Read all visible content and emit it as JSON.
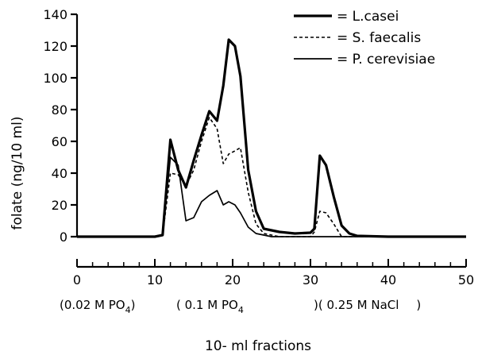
{
  "chart_data": {
    "type": "line",
    "xlabel": "10- ml fractions",
    "ylabel": "folate (ng/10 ml)",
    "xlim": [
      0,
      50
    ],
    "ylim": [
      0,
      140
    ],
    "x_ticks": [
      0,
      10,
      20,
      30,
      40,
      50
    ],
    "y_ticks": [
      0,
      20,
      40,
      60,
      80,
      100,
      120,
      140
    ],
    "grid": false,
    "legend_position": "top-right",
    "series": [
      {
        "name": "L.casei",
        "legend_label": "= L.casei",
        "style": "thick-solid",
        "points": [
          [
            0,
            0
          ],
          [
            10,
            0
          ],
          [
            11,
            1
          ],
          [
            12,
            61
          ],
          [
            13,
            42
          ],
          [
            14,
            31
          ],
          [
            15,
            48
          ],
          [
            16,
            64
          ],
          [
            17,
            79
          ],
          [
            18,
            73
          ],
          [
            18.8,
            95
          ],
          [
            19.5,
            124
          ],
          [
            20.3,
            120
          ],
          [
            21,
            101
          ],
          [
            22,
            42
          ],
          [
            23,
            16
          ],
          [
            24,
            5
          ],
          [
            26,
            3
          ],
          [
            28,
            2
          ],
          [
            30,
            2.5
          ],
          [
            30.5,
            5
          ],
          [
            31.2,
            51
          ],
          [
            32,
            45
          ],
          [
            33,
            25
          ],
          [
            34,
            7
          ],
          [
            35,
            2
          ],
          [
            36,
            0.5
          ],
          [
            40,
            0
          ],
          [
            50,
            0
          ]
        ]
      },
      {
        "name": "S. faecalis",
        "legend_label": "= S. faecalis",
        "style": "dashed",
        "points": [
          [
            0,
            0
          ],
          [
            10,
            0
          ],
          [
            11,
            1
          ],
          [
            12,
            40
          ],
          [
            13,
            39
          ],
          [
            14,
            32
          ],
          [
            15,
            42
          ],
          [
            16,
            60
          ],
          [
            17,
            75
          ],
          [
            18,
            68
          ],
          [
            18.8,
            46
          ],
          [
            19.5,
            52
          ],
          [
            20.3,
            54
          ],
          [
            21,
            56
          ],
          [
            22,
            28
          ],
          [
            23,
            8
          ],
          [
            24,
            2
          ],
          [
            26,
            0
          ],
          [
            30,
            0
          ],
          [
            30.5,
            3
          ],
          [
            31.2,
            16
          ],
          [
            32,
            15
          ],
          [
            33,
            8
          ],
          [
            34,
            0
          ],
          [
            50,
            0
          ]
        ]
      },
      {
        "name": "P. cerevisiae",
        "legend_label": "= P. cerevisiae",
        "style": "thin-solid",
        "points": [
          [
            0,
            0
          ],
          [
            10,
            0
          ],
          [
            11,
            1
          ],
          [
            12,
            50
          ],
          [
            13,
            45
          ],
          [
            14,
            10
          ],
          [
            15,
            12
          ],
          [
            16,
            22
          ],
          [
            17,
            26
          ],
          [
            18,
            29
          ],
          [
            18.8,
            20
          ],
          [
            19.5,
            22
          ],
          [
            20.3,
            20
          ],
          [
            21,
            15
          ],
          [
            22,
            6
          ],
          [
            23,
            2
          ],
          [
            25,
            0
          ],
          [
            50,
            0
          ]
        ]
      }
    ],
    "segments": [
      {
        "label": "(0.02 M PO",
        "subscript": "4",
        "close": ")"
      },
      {
        "label": "( 0.1 M PO",
        "subscript": "4",
        "close": ""
      },
      {
        "label": ")( 0.25 M NaCl",
        "subscript": "",
        "close": ")"
      }
    ]
  }
}
